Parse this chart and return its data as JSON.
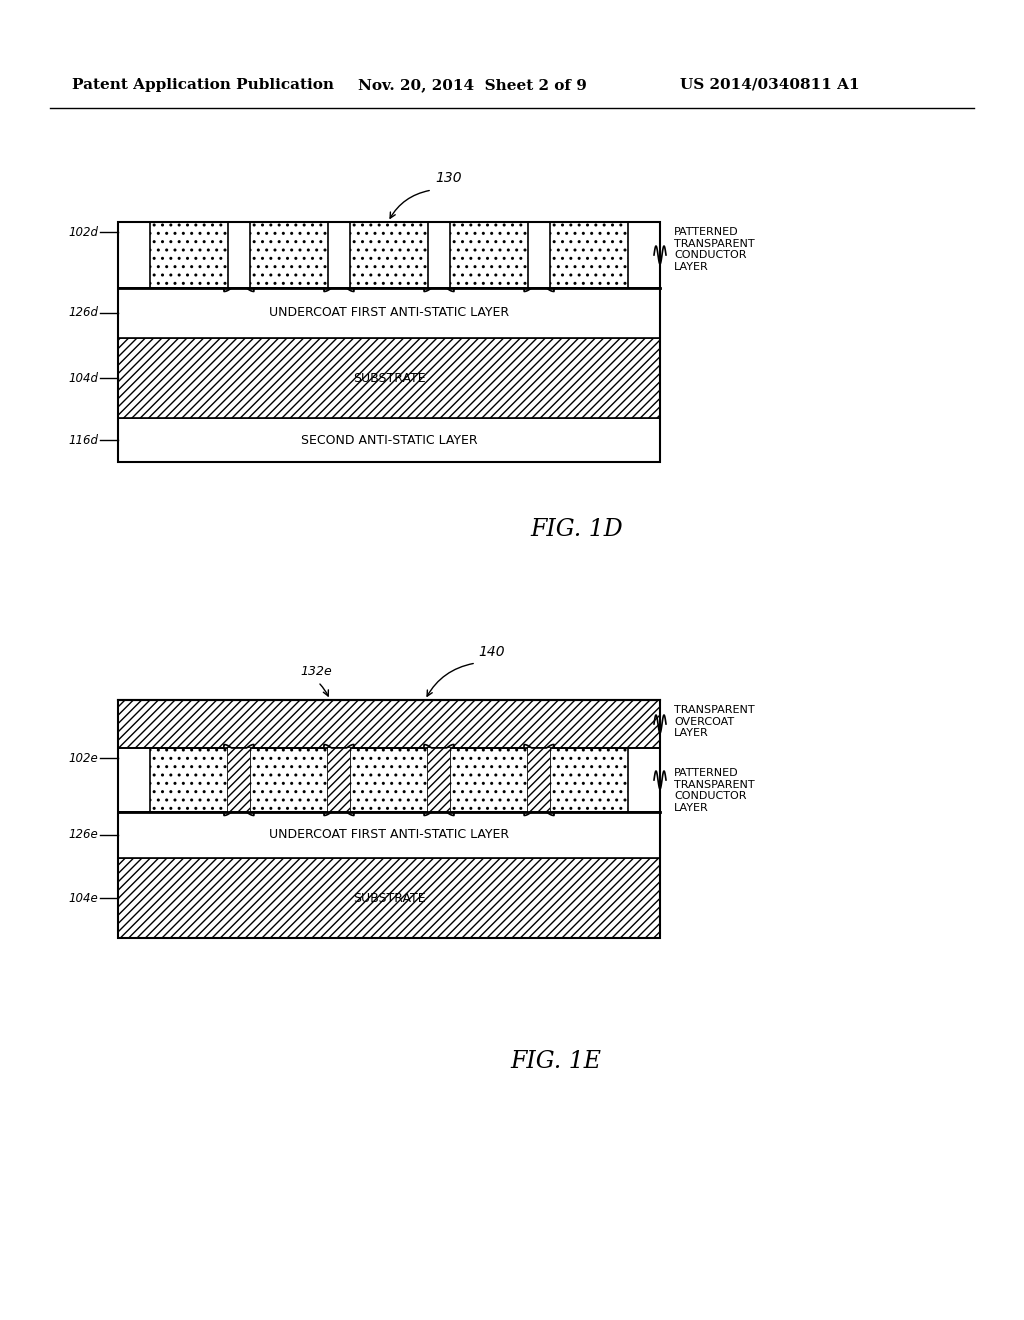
{
  "bg_color": "#ffffff",
  "header_left": "Patent Application Publication",
  "header_mid": "Nov. 20, 2014  Sheet 2 of 9",
  "header_right": "US 2014/0340811 A1",
  "fig1d_label": "FIG. 1D",
  "fig1e_label": "FIG. 1E"
}
